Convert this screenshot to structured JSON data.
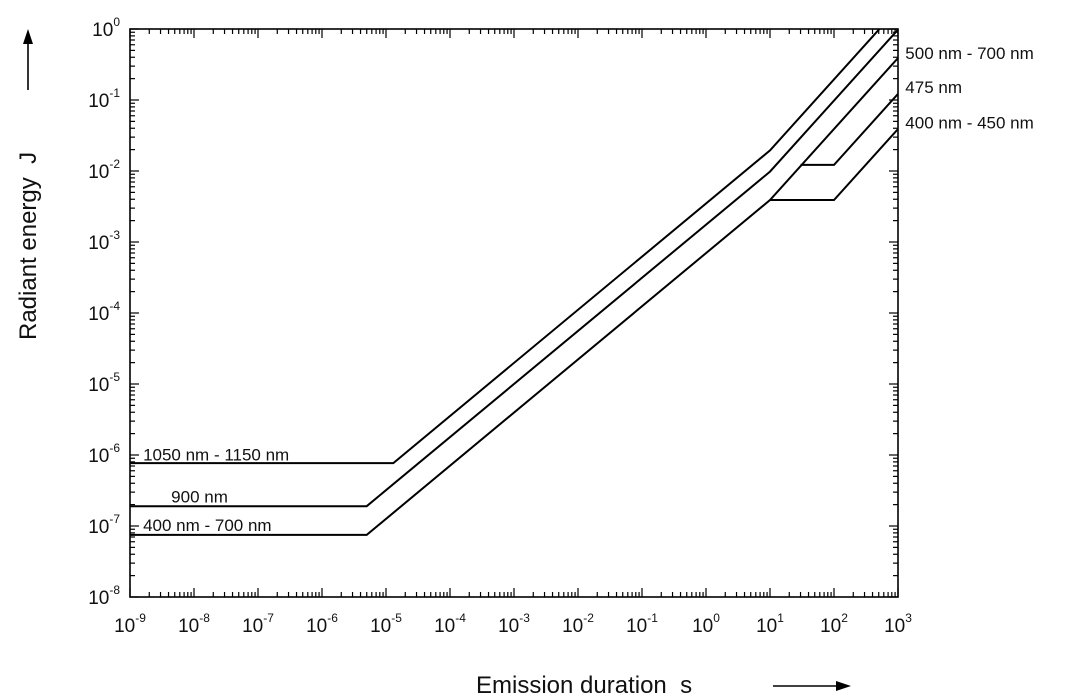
{
  "chart_data": {
    "type": "line",
    "title": "",
    "xlabel": "Emission duration  s",
    "ylabel": "Radiant energy  J",
    "xscale": "log",
    "yscale": "log",
    "xlim": [
      1e-09,
      1000
    ],
    "ylim": [
      1e-08,
      1
    ],
    "grid": false,
    "x_ticks": [
      {
        "base": "10",
        "exp": "-9"
      },
      {
        "base": "10",
        "exp": "-8"
      },
      {
        "base": "10",
        "exp": "-7"
      },
      {
        "base": "10",
        "exp": "-6"
      },
      {
        "base": "10",
        "exp": "-5"
      },
      {
        "base": "10",
        "exp": "-4"
      },
      {
        "base": "10",
        "exp": "-3"
      },
      {
        "base": "10",
        "exp": "-2"
      },
      {
        "base": "10",
        "exp": "-1"
      },
      {
        "base": "10",
        "exp": "0"
      },
      {
        "base": "10",
        "exp": "1"
      },
      {
        "base": "10",
        "exp": "2"
      },
      {
        "base": "10",
        "exp": "3"
      }
    ],
    "y_ticks": [
      {
        "base": "10",
        "exp": "-8"
      },
      {
        "base": "10",
        "exp": "-7"
      },
      {
        "base": "10",
        "exp": "-6"
      },
      {
        "base": "10",
        "exp": "-5"
      },
      {
        "base": "10",
        "exp": "-4"
      },
      {
        "base": "10",
        "exp": "-3"
      },
      {
        "base": "10",
        "exp": "-2"
      },
      {
        "base": "10",
        "exp": "-1"
      },
      {
        "base": "10",
        "exp": "0"
      }
    ],
    "series": [
      {
        "name": "1050 nm - 1150 nm",
        "x": [
          1e-09,
          1.3e-05,
          10,
          1000
        ],
        "y": [
          7.7e-07,
          7.7e-07,
          0.0195,
          1.95
        ]
      },
      {
        "name": "900 nm",
        "x": [
          1e-09,
          5e-06,
          10,
          1000
        ],
        "y": [
          1.9e-07,
          1.9e-07,
          0.0098,
          0.98
        ]
      },
      {
        "name": "400 nm - 700 nm",
        "x": [
          1e-09,
          5e-06,
          10,
          1000
        ],
        "y": [
          7.5e-08,
          7.5e-08,
          0.0039,
          0.39
        ]
      },
      {
        "name": "475 nm",
        "x": [
          30,
          100,
          1000
        ],
        "y": [
          0.0122,
          0.0122,
          0.122
        ]
      },
      {
        "name": "400 nm - 450 nm",
        "x": [
          10,
          100,
          1000
        ],
        "y": [
          0.0039,
          0.0039,
          0.039
        ]
      }
    ],
    "annotations": [
      {
        "text": "1050 nm - 1150 nm",
        "x": 1.6e-09,
        "y": 8.4e-07,
        "anchor": "start"
      },
      {
        "text": "900 nm",
        "x": 4.4e-09,
        "y": 2.15e-07,
        "anchor": "start"
      },
      {
        "text": "400 nm - 700 nm",
        "x": 1.6e-09,
        "y": 8.5e-08,
        "anchor": "start"
      },
      {
        "text": "500 nm - 700 nm",
        "x": 1300,
        "y": 0.38,
        "anchor": "start"
      },
      {
        "text": "475 nm",
        "x": 1300,
        "y": 0.125,
        "anchor": "start"
      },
      {
        "text": "400 nm - 450 nm",
        "x": 1300,
        "y": 0.04,
        "anchor": "start"
      }
    ]
  }
}
